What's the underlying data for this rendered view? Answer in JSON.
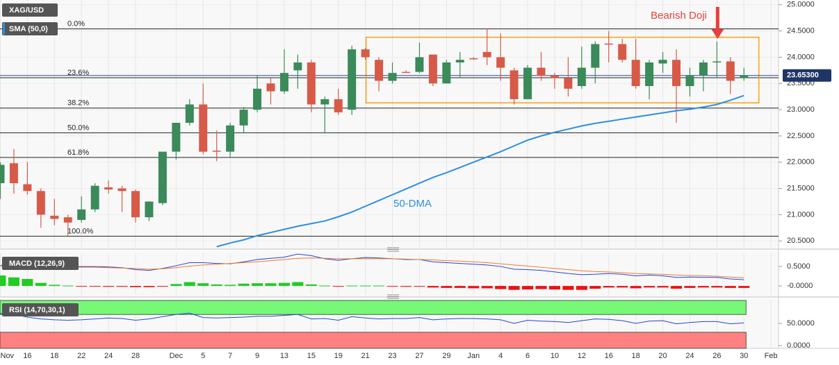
{
  "chart_data": [
    {
      "type": "candlestick",
      "categories": [
        "Nov",
        null,
        "16",
        null,
        "18",
        null,
        "22",
        null,
        "24",
        null,
        "28",
        null,
        null,
        "Dec",
        null,
        "5",
        null,
        "7",
        null,
        "9",
        null,
        "13",
        null,
        "15",
        null,
        "19",
        null,
        "21",
        null,
        "23",
        null,
        "27",
        null,
        "29",
        null,
        "Jan",
        null,
        "4",
        null,
        "6",
        null,
        "10",
        null,
        "12",
        null,
        "16",
        null,
        "18",
        null,
        "20",
        null,
        "24",
        null,
        "26",
        null,
        "30",
        null,
        "Feb"
      ],
      "series": [
        {
          "name": "XAG/USD",
          "up_color": "#3b8a5a",
          "down_color": "#d75a48",
          "open": [
            21.6,
            21.98,
            21.58,
            21.45,
            20.98,
            20.95,
            20.9,
            21.1,
            21.52,
            21.5,
            21.45,
            20.95,
            21.22,
            22.2,
            22.75,
            23.1,
            22.22,
            22.2,
            22.7,
            23.0,
            23.5,
            23.35,
            23.75,
            23.9,
            23.1,
            23.2,
            23.0,
            24.15,
            23.95,
            23.55,
            23.72,
            23.72,
            24.05,
            23.5,
            23.9,
            23.98,
            24.1,
            24.0,
            23.75,
            23.2,
            23.8,
            23.65,
            23.6,
            23.45,
            23.8,
            24.26,
            24.25,
            23.95,
            23.45,
            23.88,
            23.95,
            23.45,
            23.65,
            23.9,
            23.92,
            23.6,
            null,
            null
          ],
          "high": [
            22.0,
            22.25,
            22.0,
            21.5,
            21.3,
            21.0,
            21.35,
            21.6,
            21.65,
            21.55,
            21.48,
            21.25,
            22.2,
            22.75,
            23.2,
            23.5,
            22.6,
            22.75,
            23.05,
            23.65,
            23.6,
            24.15,
            24.05,
            23.95,
            23.25,
            23.4,
            24.22,
            24.18,
            24.0,
            23.9,
            23.75,
            24.28,
            24.05,
            23.95,
            24.1,
            24.0,
            24.55,
            24.45,
            23.8,
            23.85,
            24.1,
            23.7,
            24.0,
            24.2,
            24.3,
            24.5,
            24.35,
            24.35,
            23.95,
            24.1,
            24.15,
            23.8,
            23.95,
            24.3,
            24.0,
            23.8,
            null,
            null
          ],
          "low": [
            21.3,
            21.4,
            21.38,
            20.75,
            20.8,
            20.6,
            20.85,
            21.05,
            21.4,
            21.05,
            20.85,
            20.88,
            21.18,
            22.05,
            22.7,
            22.15,
            22.02,
            22.1,
            22.55,
            22.95,
            23.1,
            23.3,
            23.4,
            22.95,
            22.55,
            22.9,
            22.9,
            23.95,
            23.35,
            23.5,
            23.7,
            23.7,
            23.45,
            23.5,
            23.6,
            23.95,
            23.85,
            23.55,
            23.1,
            23.2,
            23.55,
            23.4,
            23.25,
            23.4,
            23.5,
            23.9,
            23.9,
            23.4,
            23.2,
            23.7,
            22.75,
            23.25,
            23.35,
            23.6,
            23.3,
            23.55,
            null,
            null
          ],
          "close": [
            21.95,
            21.6,
            21.45,
            21.0,
            20.92,
            20.85,
            21.1,
            21.55,
            21.48,
            21.45,
            20.95,
            21.25,
            22.2,
            22.75,
            23.1,
            22.2,
            22.2,
            22.7,
            23.0,
            23.4,
            23.35,
            23.7,
            23.9,
            23.1,
            23.2,
            22.95,
            24.15,
            24.0,
            23.55,
            23.7,
            23.71,
            24.0,
            23.5,
            23.9,
            23.95,
            23.97,
            24.0,
            23.8,
            23.2,
            23.8,
            23.65,
            23.6,
            23.4,
            23.8,
            24.25,
            24.25,
            23.95,
            23.45,
            23.9,
            23.95,
            23.45,
            23.65,
            23.9,
            23.92,
            23.55,
            23.653,
            null,
            null
          ]
        },
        {
          "name": "SMA (50,0)",
          "color": "#2b8fe3",
          "values": [
            null,
            null,
            null,
            null,
            null,
            null,
            null,
            null,
            null,
            null,
            null,
            null,
            null,
            null,
            null,
            null,
            20.39,
            20.46,
            20.52,
            20.6,
            20.66,
            20.72,
            20.78,
            20.83,
            20.88,
            20.96,
            21.05,
            21.16,
            21.27,
            21.38,
            21.49,
            21.6,
            21.71,
            21.8,
            21.9,
            22.0,
            22.1,
            22.2,
            22.31,
            22.42,
            22.5,
            22.57,
            22.63,
            22.69,
            22.74,
            22.78,
            22.82,
            22.86,
            22.9,
            22.94,
            22.98,
            23.01,
            23.05,
            23.1,
            23.18,
            23.27,
            null,
            null
          ]
        }
      ],
      "ylim": [
        20.37,
        25.09
      ],
      "yticks": [
        {
          "value": 25,
          "label": "25.0000"
        },
        {
          "value": 24.5,
          "label": "24.5000"
        },
        {
          "value": 24,
          "label": "24.0000"
        },
        {
          "value": 23.5,
          "label": "23.5000"
        },
        {
          "value": 23,
          "label": "23.0000"
        },
        {
          "value": 22.5,
          "label": "22.5000"
        },
        {
          "value": 22,
          "label": "22.0000"
        },
        {
          "value": 21.5,
          "label": "21.5000"
        },
        {
          "value": 21,
          "label": "21.0000"
        },
        {
          "value": 20.5,
          "label": "20.5000"
        }
      ],
      "fib_levels": [
        {
          "label": "0.0%",
          "value": 24.54
        },
        {
          "label": "23.6%",
          "value": 23.61
        },
        {
          "label": "38.2%",
          "value": 23.03
        },
        {
          "label": "50.0%",
          "value": 22.56
        },
        {
          "label": "61.8%",
          "value": 22.09
        },
        {
          "label": "100.0%",
          "value": 20.59
        }
      ],
      "last_price": {
        "value": 23.653,
        "label": "23.65300"
      },
      "range_box": {
        "low": 23.13,
        "high": 24.38,
        "color": "#f5a623"
      },
      "annotations": [
        {
          "text": "Bearish Doji",
          "color": "#e8403a"
        },
        {
          "text": "50-DMA",
          "color": "#2b8fe3"
        }
      ],
      "grid": true
    },
    {
      "type": "macd",
      "legend": "MACD (12,26,9)",
      "series": [
        {
          "name": "histogram",
          "type": "bar",
          "up_color": "#22cc22",
          "down_color": "#ee1111",
          "values": [
            0.27,
            0.22,
            0.18,
            0.08,
            0.03,
            0.01,
            -0.01,
            -0.01,
            -0.02,
            -0.02,
            -0.03,
            -0.03,
            -0.01,
            0.05,
            0.1,
            0.07,
            0.04,
            0.03,
            0.06,
            0.07,
            0.07,
            0.08,
            0.1,
            0.04,
            0.01,
            -0.01,
            0.01,
            0.01,
            0.01,
            -0.01,
            -0.02,
            -0.01,
            -0.04,
            -0.05,
            -0.05,
            -0.06,
            -0.06,
            -0.08,
            -0.1,
            -0.09,
            -0.08,
            -0.09,
            -0.1,
            -0.1,
            -0.07,
            -0.04,
            -0.04,
            -0.06,
            -0.04,
            -0.04,
            -0.07,
            -0.05,
            -0.04,
            -0.04,
            -0.05,
            -0.05,
            null,
            null
          ]
        },
        {
          "name": "macd",
          "type": "line",
          "color": "#2244dd",
          "values": [
            0.53,
            0.53,
            0.52,
            0.52,
            0.5,
            0.5,
            0.5,
            0.5,
            0.49,
            0.47,
            0.42,
            0.4,
            0.45,
            0.52,
            0.6,
            0.6,
            0.58,
            0.57,
            0.62,
            0.68,
            0.71,
            0.74,
            0.82,
            0.78,
            0.7,
            0.66,
            0.7,
            0.73,
            0.72,
            0.7,
            0.68,
            0.68,
            0.62,
            0.6,
            0.58,
            0.56,
            0.54,
            0.5,
            0.43,
            0.42,
            0.4,
            0.36,
            0.32,
            0.29,
            0.3,
            0.32,
            0.3,
            0.26,
            0.28,
            0.26,
            0.22,
            0.23,
            0.22,
            0.22,
            0.18,
            0.16,
            null,
            null
          ]
        },
        {
          "name": "signal",
          "type": "line",
          "color": "#f07a28",
          "values": [
            0.5,
            0.5,
            0.5,
            0.5,
            0.5,
            0.49,
            0.48,
            0.48,
            0.47,
            0.46,
            0.45,
            0.43,
            0.44,
            0.47,
            0.51,
            0.54,
            0.56,
            0.58,
            0.6,
            0.62,
            0.65,
            0.68,
            0.71,
            0.72,
            0.71,
            0.7,
            0.7,
            0.7,
            0.7,
            0.7,
            0.69,
            0.68,
            0.67,
            0.65,
            0.64,
            0.62,
            0.6,
            0.57,
            0.54,
            0.51,
            0.48,
            0.45,
            0.42,
            0.39,
            0.37,
            0.36,
            0.34,
            0.32,
            0.31,
            0.3,
            0.28,
            0.27,
            0.26,
            0.25,
            0.23,
            0.21,
            null,
            null
          ]
        }
      ],
      "ylim": [
        -0.23,
        0.84
      ],
      "yticks": [
        {
          "value": 0.5,
          "label": "0.5000"
        },
        {
          "value": 0,
          "label": "-0.0000"
        }
      ]
    },
    {
      "type": "rsi",
      "legend": "RSI (14,70,30,1)",
      "overbought": 70,
      "oversold": 30,
      "overbought_color": "#77f877",
      "oversold_color": "#ff8181",
      "series": [
        {
          "name": "rsi",
          "color": "#2244dd",
          "values": [
            72,
            70,
            64,
            60,
            58,
            57,
            58,
            60,
            62,
            61,
            57,
            60,
            65,
            70,
            73,
            63,
            62,
            63,
            64,
            66,
            66,
            68,
            70,
            60,
            61,
            57,
            65,
            62,
            60,
            61,
            61,
            63,
            58,
            60,
            61,
            61,
            60,
            58,
            50,
            57,
            55,
            54,
            52,
            56,
            60,
            59,
            56,
            50,
            55,
            56,
            49,
            52,
            54,
            54,
            49,
            51,
            null,
            null
          ]
        }
      ],
      "ylim": [
        -3,
        103
      ],
      "yticks": [
        {
          "value": 50,
          "label": "50.0000"
        },
        {
          "value": 0,
          "label": "0.0000"
        }
      ]
    }
  ]
}
